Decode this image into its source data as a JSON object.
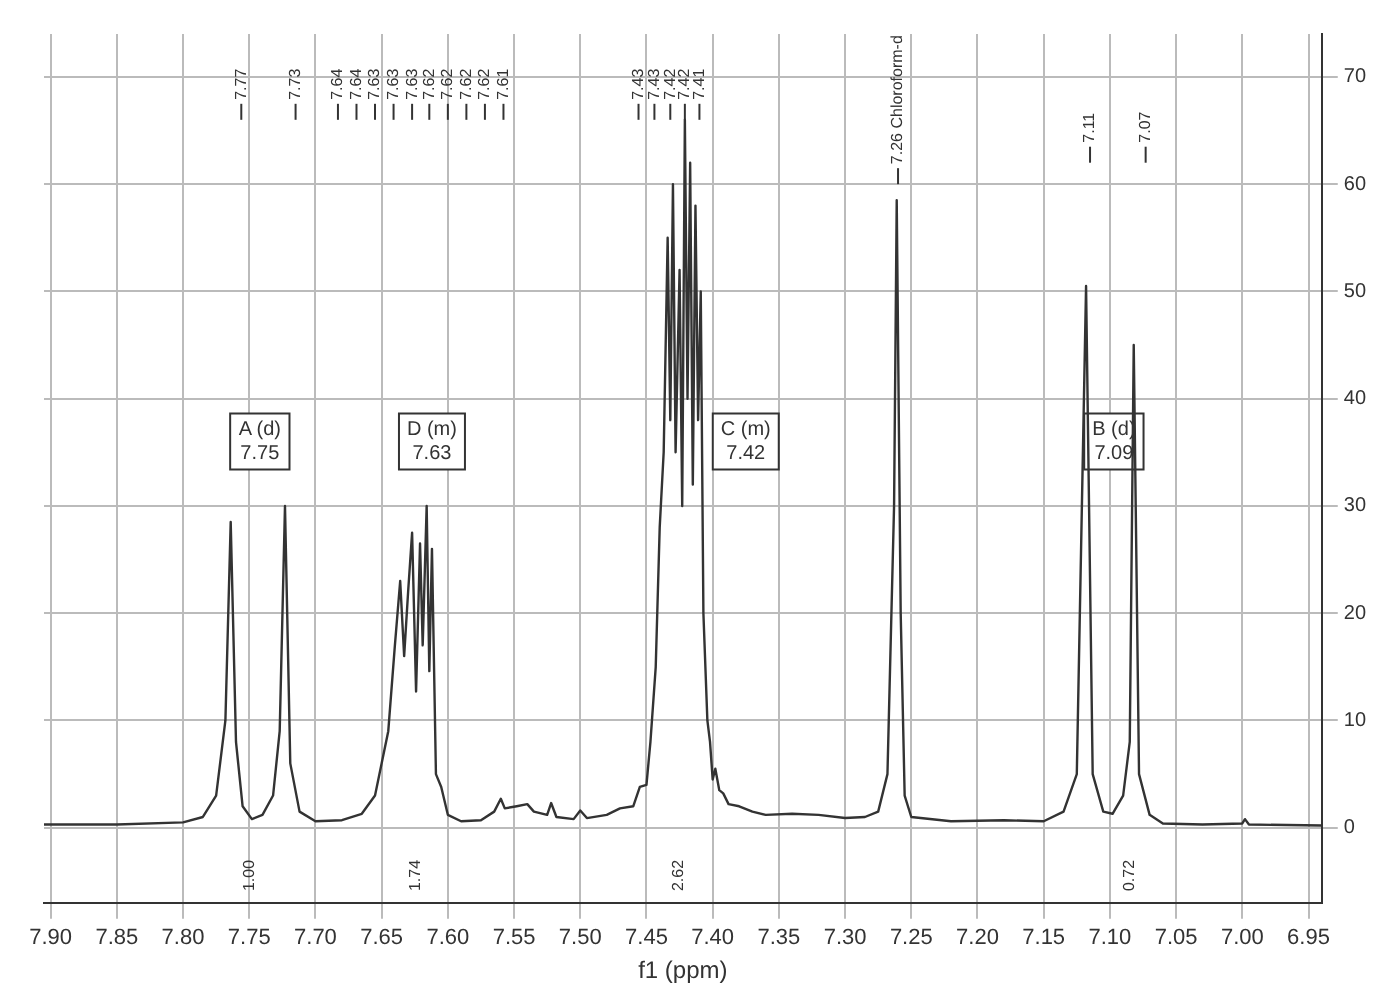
{
  "chart_data": {
    "type": "line",
    "xlabel": "f1 (ppm)",
    "xlim": [
      7.905,
      6.94
    ],
    "xticks": [
      {
        "value": 7.9,
        "label": "7.90"
      },
      7.85,
      {
        "value": 7.8,
        "label": "7.80"
      },
      7.75,
      {
        "value": 7.7,
        "label": "7.70"
      },
      7.65,
      {
        "value": 7.6,
        "label": "7.60"
      },
      7.55,
      {
        "value": 7.5,
        "label": "7.50"
      },
      7.45,
      {
        "value": 7.4,
        "label": "7.40"
      },
      7.35,
      {
        "value": 7.3,
        "label": "7.30"
      },
      7.25,
      {
        "value": 7.2,
        "label": "7.20"
      },
      7.15,
      {
        "value": 7.1,
        "label": "7.10"
      },
      7.05,
      {
        "value": 7.0,
        "label": "7.00"
      },
      6.95
    ],
    "ylim": [
      -7,
      74
    ],
    "yticks": [
      0,
      10,
      20,
      30,
      40,
      50,
      60,
      70
    ],
    "grid": true,
    "legend": false,
    "marker": "none",
    "line_style": "solid",
    "series": [
      {
        "color": "#333333",
        "x": [
          7.905,
          7.85,
          7.8,
          7.785,
          7.775,
          7.768,
          7.764,
          7.76,
          7.755,
          7.748,
          7.74,
          7.732,
          7.727,
          7.723,
          7.719,
          7.712,
          7.7,
          7.68,
          7.665,
          7.655,
          7.645,
          7.64,
          7.636,
          7.633,
          7.63,
          7.627,
          7.624,
          7.621,
          7.619,
          7.616,
          7.614,
          7.612,
          7.609,
          7.605,
          7.6,
          7.59,
          7.575,
          7.565,
          7.56,
          7.557,
          7.548,
          7.54,
          7.535,
          7.525,
          7.522,
          7.518,
          7.505,
          7.5,
          7.495,
          7.48,
          7.47,
          7.46,
          7.455,
          7.45,
          7.447,
          7.443,
          7.44,
          7.437,
          7.434,
          7.432,
          7.43,
          7.428,
          7.425,
          7.423,
          7.421,
          7.419,
          7.417,
          7.415,
          7.413,
          7.411,
          7.409,
          7.407,
          7.404,
          7.402,
          7.4,
          7.398,
          7.395,
          7.392,
          7.388,
          7.38,
          7.37,
          7.36,
          7.34,
          7.32,
          7.3,
          7.285,
          7.275,
          7.268,
          7.263,
          7.261,
          7.258,
          7.255,
          7.25,
          7.22,
          7.18,
          7.15,
          7.135,
          7.125,
          7.118,
          7.113,
          7.105,
          7.098,
          7.09,
          7.085,
          7.082,
          7.078,
          7.07,
          7.06,
          7.03,
          7.0,
          6.998,
          6.995,
          6.94
        ],
        "values": [
          0.3,
          0.3,
          0.5,
          1,
          3,
          10,
          28.5,
          8,
          2,
          0.8,
          1.2,
          3,
          9,
          30,
          6,
          1.5,
          0.6,
          0.7,
          1.3,
          3,
          9,
          17,
          23,
          16,
          22,
          27.5,
          12.7,
          26.5,
          17,
          30,
          14.6,
          26,
          5,
          3.8,
          1.2,
          0.6,
          0.7,
          1.5,
          2.7,
          1.8,
          2,
          2.2,
          1.5,
          1.2,
          2.3,
          1,
          0.8,
          1.6,
          0.9,
          1.2,
          1.8,
          2,
          3.8,
          4,
          8,
          15,
          28,
          35,
          55,
          38,
          60,
          35,
          52,
          30,
          66,
          40,
          62,
          32,
          58,
          38,
          50,
          20,
          10,
          8,
          4.5,
          5.5,
          3.5,
          3.2,
          2.2,
          2,
          1.5,
          1.2,
          1.3,
          1.2,
          0.9,
          1,
          1.5,
          5,
          30,
          58.5,
          20,
          3,
          1,
          0.6,
          0.7,
          0.6,
          1.5,
          5,
          50.5,
          5,
          1.5,
          1.3,
          3,
          8,
          45,
          5,
          1.2,
          0.4,
          0.3,
          0.4,
          0.8,
          0.3,
          0.2
        ]
      }
    ],
    "annotations": [
      "7.77",
      "7.73",
      "7.64",
      "7.64",
      "7.63",
      "7.63",
      "7.63",
      "7.62",
      "7.62",
      "7.62",
      "7.62",
      "7.61",
      "7.43",
      "7.43",
      "7.42",
      "7.42",
      "7.41",
      "7.26 Chloroform-d",
      "7.11",
      "7.07",
      {
        "text": "A (d)\n7.75",
        "x": 7.742,
        "y": 36
      },
      {
        "text": "D (m)\n7.63",
        "x": 7.612,
        "y": 36
      },
      {
        "text": "C (m)\n7.42",
        "x": 7.375,
        "y": 36
      },
      {
        "text": "B (d)\n7.09",
        "x": 7.097,
        "y": 36
      },
      "1.00",
      "1.74",
      "2.62",
      "0.72"
    ]
  }
}
